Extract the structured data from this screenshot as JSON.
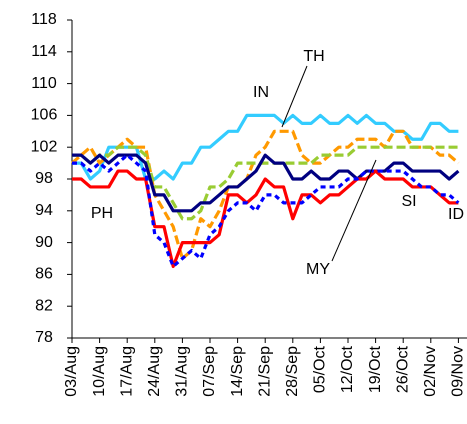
{
  "chart_data": {
    "type": "line",
    "categories": [
      "03/Aug",
      null,
      null,
      "10/Aug",
      null,
      null,
      "17/Aug",
      null,
      null,
      "24/Aug",
      null,
      null,
      "31/Aug",
      null,
      null,
      "07/Sep",
      null,
      null,
      "14/Sep",
      null,
      null,
      "21/Sep",
      null,
      null,
      "28/Sep",
      null,
      null,
      "05/Oct",
      null,
      null,
      "12/Oct",
      null,
      null,
      "19/Oct",
      null,
      null,
      "26/Oct",
      null,
      null,
      "02/Nov",
      null,
      null,
      "09/Nov"
    ],
    "ylim": [
      78,
      118
    ],
    "yticks": [
      78,
      82,
      86,
      90,
      94,
      98,
      102,
      106,
      110,
      114,
      118
    ],
    "grid": false,
    "series": [
      {
        "name": "TH",
        "color": "#33ccff",
        "dash": "solid",
        "values": [
          100,
          100,
          98,
          99,
          102,
          102,
          102,
          102,
          98,
          98,
          99,
          98,
          100,
          100,
          102,
          102,
          103,
          104,
          104,
          106,
          106,
          106,
          106,
          105,
          106,
          105,
          105,
          106,
          105,
          105,
          106,
          105,
          106,
          105,
          105,
          104,
          104,
          103,
          103,
          105,
          105,
          104,
          104
        ]
      },
      {
        "name": "IN",
        "color": "#ff9900",
        "dash": "dashed",
        "values": [
          100,
          101,
          102,
          100,
          101,
          102,
          103,
          102,
          102,
          96,
          94,
          92,
          88,
          89,
          93,
          92,
          94,
          97,
          97,
          98,
          101,
          102,
          104,
          104,
          104,
          101,
          100,
          100,
          101,
          102,
          102,
          103,
          103,
          103,
          102,
          104,
          104,
          102,
          102,
          102,
          101,
          101,
          100
        ]
      },
      {
        "name": "SI",
        "color": "#99cc33",
        "dash": "dashed",
        "values": [
          101,
          101,
          100,
          101,
          101,
          102,
          102,
          102,
          101,
          97,
          97,
          95,
          93,
          93,
          94,
          97,
          97,
          98,
          100,
          100,
          100,
          100,
          100,
          100,
          100,
          100,
          100,
          101,
          101,
          101,
          101,
          102,
          102,
          102,
          102,
          102,
          102,
          102,
          102,
          102,
          102,
          102,
          102
        ]
      },
      {
        "name": "MY",
        "color": "#000080",
        "dash": "solid",
        "values": [
          101,
          101,
          100,
          101,
          100,
          101,
          101,
          101,
          100,
          96,
          96,
          94,
          94,
          94,
          95,
          95,
          96,
          97,
          97,
          98,
          99,
          101,
          100,
          100,
          98,
          98,
          99,
          98,
          98,
          99,
          99,
          98,
          99,
          99,
          99,
          100,
          100,
          99,
          99,
          99,
          99,
          98,
          99
        ]
      },
      {
        "name": "PH",
        "color": "#ff0000",
        "dash": "solid",
        "values": [
          98,
          98,
          97,
          97,
          97,
          99,
          99,
          98,
          98,
          92,
          92,
          87,
          90,
          90,
          90,
          90,
          91,
          96,
          96,
          95,
          96,
          98,
          97,
          97,
          93,
          96,
          96,
          95,
          96,
          96,
          97,
          98,
          98,
          99,
          98,
          98,
          98,
          97,
          97,
          97,
          96,
          95,
          95
        ]
      },
      {
        "name": "ID",
        "color": "#0000ff",
        "dash": "dotted",
        "values": [
          100,
          100,
          99,
          100,
          99,
          100,
          101,
          100,
          99,
          91,
          90,
          87,
          88,
          89,
          88,
          91,
          92,
          94,
          95,
          95,
          94,
          96,
          96,
          95,
          95,
          95,
          96,
          97,
          97,
          97,
          98,
          98,
          99,
          99,
          99,
          99,
          99,
          98,
          97,
          97,
          96,
          96,
          95
        ]
      }
    ]
  }
}
